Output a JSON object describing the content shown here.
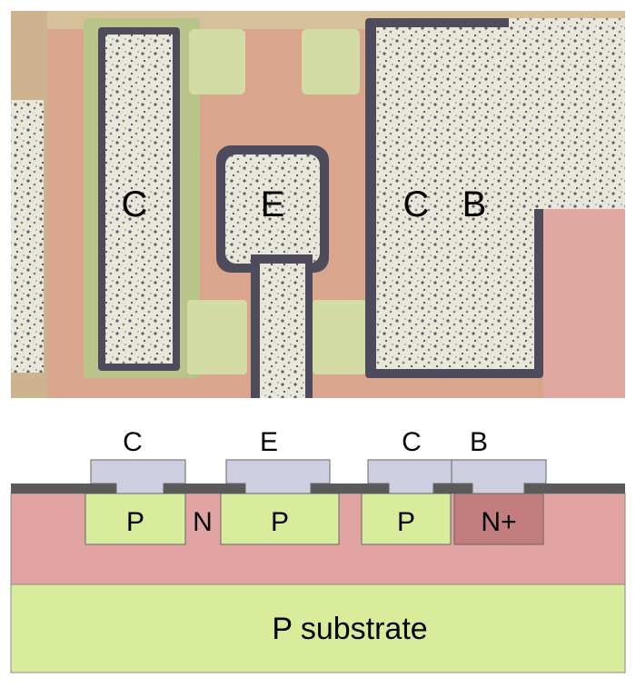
{
  "micrograph": {
    "labels": [
      "C",
      "E",
      "C",
      "B"
    ]
  },
  "cross_section": {
    "terminal_labels": [
      "C",
      "E",
      "C",
      "B"
    ],
    "region_labels": [
      "P",
      "N",
      "P",
      "P",
      "N+"
    ],
    "substrate_label": "P substrate"
  },
  "colors": {
    "pink_background": "#e2a3a3",
    "green_region": "#d8ec9c",
    "metal": "#cdcfe0",
    "oxide": "#5a5a5a",
    "n_plus": "#c27e7e",
    "micrograph_pink": "#d9a58c",
    "micrograph_green": "#d2dca4",
    "micrograph_metal": "#e6e6da"
  }
}
